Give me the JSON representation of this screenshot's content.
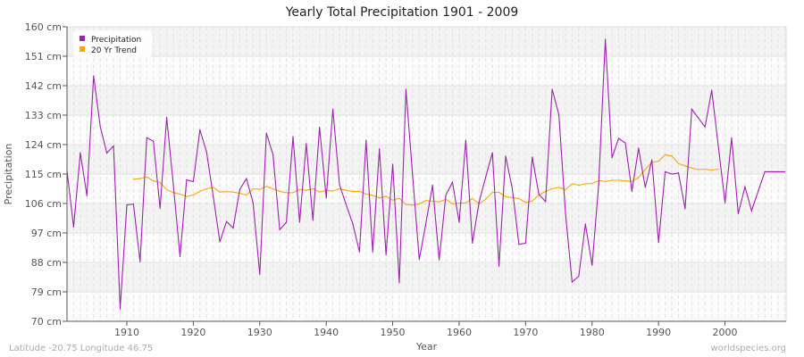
{
  "chart_data": {
    "type": "line",
    "title": "Yearly Total Precipitation 1901 - 2009",
    "xlabel": "Year",
    "ylabel": "Precipitation",
    "xlim": [
      1901,
      2009.2
    ],
    "ylim": [
      70,
      160
    ],
    "x_ticks": [
      1910,
      1920,
      1930,
      1940,
      1950,
      1960,
      1970,
      1980,
      1990,
      2000
    ],
    "y_ticks": [
      70,
      79,
      88,
      97,
      106,
      115,
      124,
      133,
      142,
      151,
      160
    ],
    "y_tick_labels": [
      "70 cm",
      "79 cm",
      "88 cm",
      "97 cm",
      "106 cm",
      "115 cm",
      "124 cm",
      "133 cm",
      "142 cm",
      "151 cm",
      "160 cm"
    ],
    "grid": true,
    "legend_position": "top-left",
    "series": [
      {
        "name": "Precipitation",
        "color": "#a020b0",
        "start_year": 1901,
        "values": [
          116,
          98.8,
          121.5,
          108.4,
          145,
          129.5,
          121.4,
          123.6,
          73.8,
          105.6,
          105.8,
          88.2,
          126.1,
          125,
          104.5,
          132.3,
          111.8,
          89.8,
          113.2,
          112.7,
          128.5,
          121.8,
          108.2,
          94.3,
          100.5,
          98.5,
          110.3,
          113.6,
          106.2,
          84.3,
          127.5,
          120.9,
          98,
          100.2,
          126.4,
          100.3,
          124.3,
          100.9,
          129.3,
          107.7,
          134.8,
          111.8,
          105.6,
          99.8,
          91.2,
          125.3,
          91.2,
          122.7,
          90.3,
          118,
          81.8,
          140.9,
          114.5,
          88.9,
          100,
          111.6,
          88.8,
          108.6,
          112.5,
          100.3,
          125.3,
          93.9,
          106.4,
          114.1,
          121.5,
          86.8,
          120.5,
          110.5,
          93.5,
          93.9,
          120.2,
          108.8,
          106.6,
          140.9,
          133.2,
          103,
          82,
          83.8,
          99.7,
          87.1,
          112,
          156.2,
          120,
          125.9,
          124.5,
          109.7,
          122.9,
          110.9,
          119.3,
          94.1,
          115.7,
          115,
          115.3,
          104.4,
          134.8,
          132.1,
          129.4,
          140.6,
          123.5,
          106.2,
          126.1,
          102.9,
          111.1,
          103.8,
          109.8,
          115.7,
          115.7,
          115.7,
          115.7
        ]
      },
      {
        "name": "20 Yr Trend",
        "color": "#ffa500",
        "start_year": 1911,
        "values": [
          113.4,
          113.6,
          114.1,
          112.9,
          112.5,
          110.2,
          109.3,
          108.9,
          108.1,
          108.6,
          109.7,
          110.5,
          110.9,
          109.5,
          109.6,
          109.5,
          109.1,
          108.6,
          110.5,
          110.3,
          111.2,
          110.5,
          109.7,
          109.3,
          109.3,
          110.3,
          110,
          110.5,
          109.5,
          110,
          109.8,
          110.5,
          110,
          109.7,
          109.7,
          108.9,
          108.5,
          107.7,
          108.2,
          107,
          107.6,
          105.7,
          105.5,
          105.9,
          106.9,
          106.7,
          106.5,
          107.3,
          105.9,
          106.1,
          106.2,
          107.5,
          105.9,
          107.3,
          109.4,
          109.4,
          108.1,
          107.8,
          107.5,
          106.3,
          106.8,
          108.6,
          109.7,
          110.5,
          110.9,
          110.2,
          112,
          111.6,
          112,
          112.1,
          113,
          112.7,
          113.1,
          113.1,
          112.9,
          112.7,
          113.9,
          116.4,
          118.6,
          118.9,
          120.9,
          120.5,
          118.2,
          117.5,
          116.8,
          116.4,
          116.5,
          116.2,
          116.5
        ]
      }
    ]
  },
  "footer": {
    "left": "Latitude -20.75 Longitude 46.75",
    "right": "worldspecies.org"
  }
}
